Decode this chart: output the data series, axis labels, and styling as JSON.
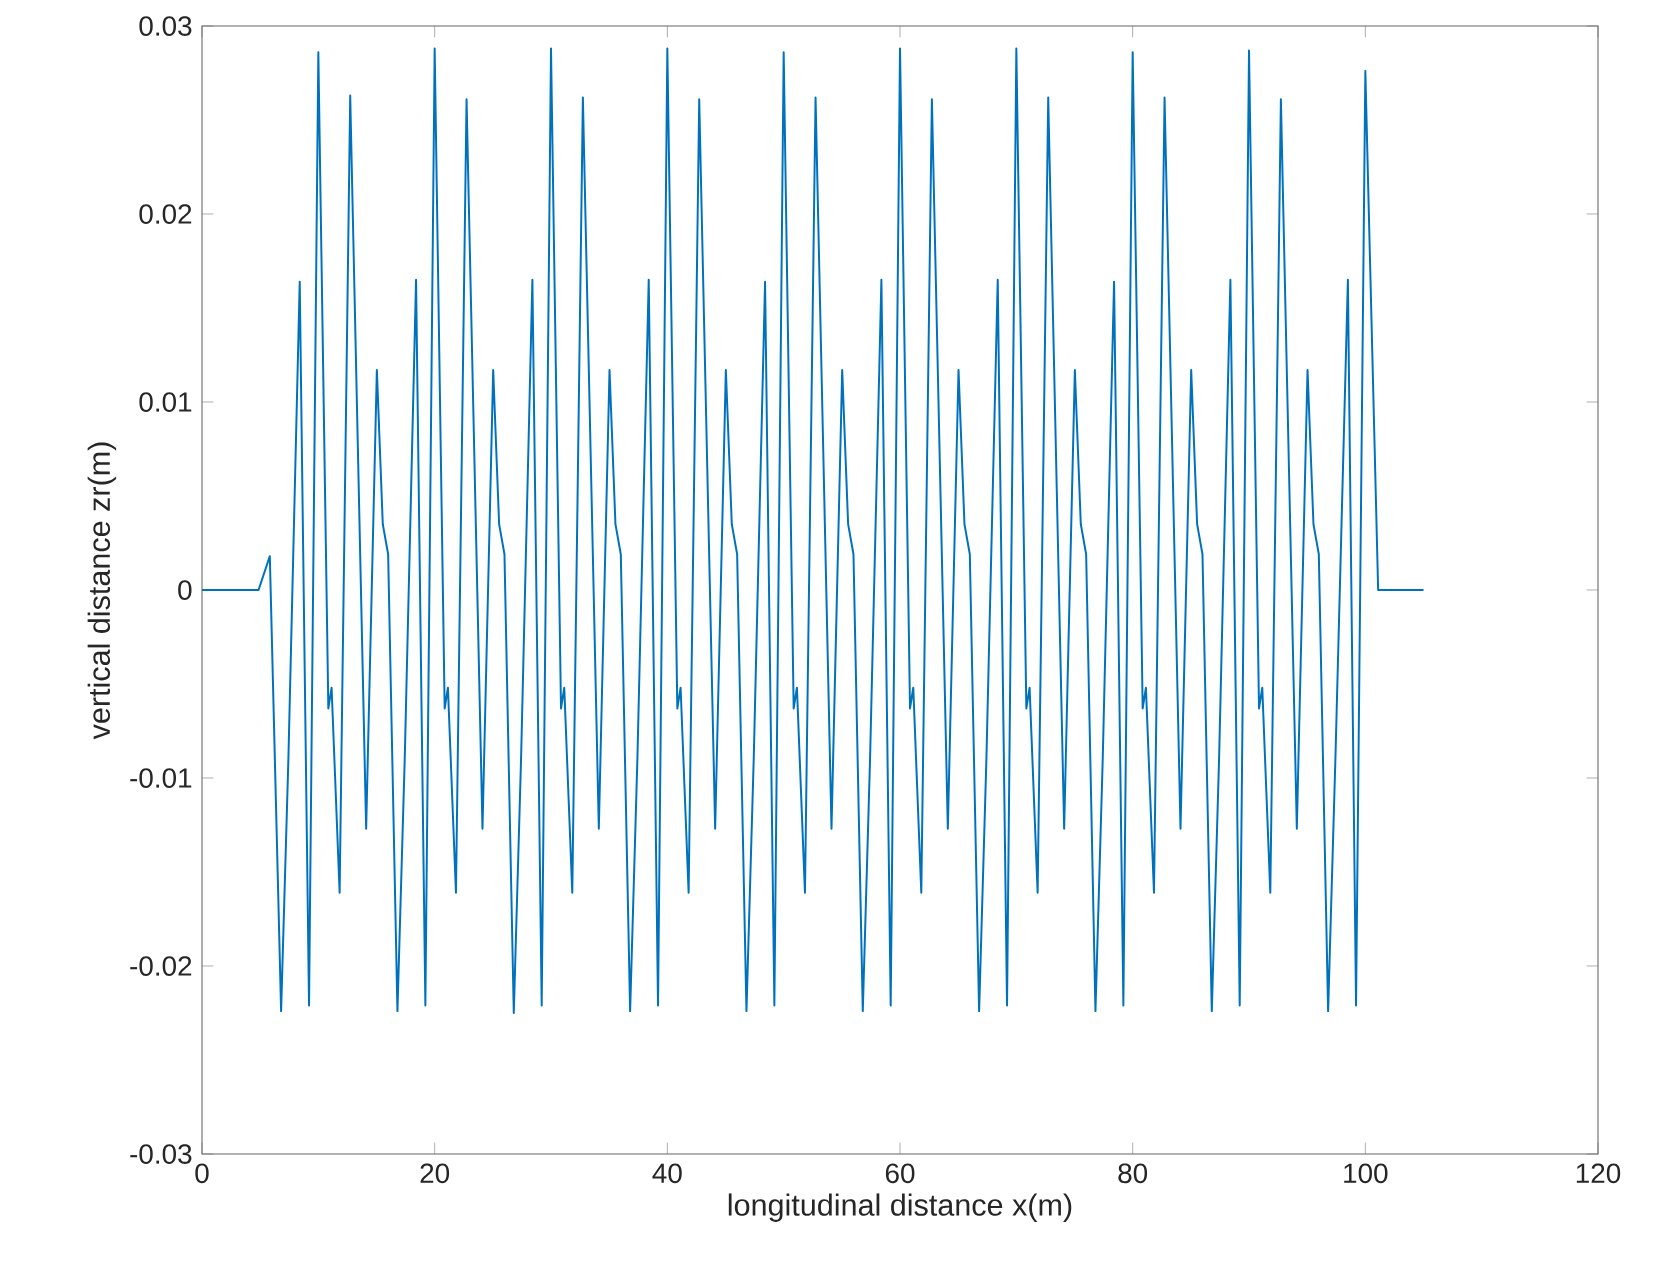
{
  "chart_data": {
    "type": "line",
    "xlabel": "longitudinal distance x(m)",
    "ylabel": "vertical distance zr(m)",
    "color": "#0072bd",
    "xlim": [
      0,
      120
    ],
    "ylim": [
      -0.03,
      0.03
    ],
    "xticks": [
      0,
      20,
      40,
      60,
      80,
      100,
      120
    ],
    "yticks": [
      -0.03,
      -0.02,
      -0.01,
      0,
      0.01,
      0.02,
      0.03
    ],
    "x": [
      0,
      4.86,
      5.83,
      6.8,
      7.43,
      8.4,
      9.2,
      10.0,
      10.86,
      11.14,
      11.83,
      12.74,
      14.11,
      15.03,
      15.54,
      16.0,
      16.8,
      17.43,
      18.4,
      19.2,
      20.0,
      20.86,
      21.14,
      21.83,
      22.74,
      24.11,
      25.03,
      25.54,
      26.0,
      26.8,
      27.43,
      28.4,
      29.2,
      30.0,
      30.86,
      31.14,
      31.83,
      32.74,
      34.11,
      35.03,
      35.54,
      36.0,
      36.8,
      37.43,
      38.4,
      39.2,
      40.0,
      40.86,
      41.14,
      41.83,
      42.74,
      44.11,
      45.03,
      45.54,
      46.0,
      46.8,
      47.43,
      48.4,
      49.2,
      50.0,
      50.86,
      51.14,
      51.83,
      52.74,
      54.11,
      55.03,
      55.54,
      56.0,
      56.8,
      57.43,
      58.4,
      59.2,
      60.0,
      60.86,
      61.14,
      61.83,
      62.74,
      64.11,
      65.03,
      65.54,
      66.0,
      66.8,
      67.43,
      68.4,
      69.2,
      70.0,
      70.86,
      71.14,
      71.83,
      72.74,
      74.11,
      75.03,
      75.54,
      76.0,
      76.8,
      77.43,
      78.4,
      79.2,
      80.0,
      80.86,
      81.14,
      81.83,
      82.74,
      84.11,
      85.03,
      85.54,
      86.0,
      86.8,
      87.43,
      88.4,
      89.2,
      90.0,
      90.86,
      91.14,
      91.83,
      92.74,
      94.11,
      95.03,
      95.54,
      96.0,
      96.8,
      97.43,
      98.5,
      99.2,
      100.0,
      101.1,
      105
    ],
    "values": [
      0,
      0,
      0.0018,
      -0.0224,
      -0.0089,
      0.0164,
      -0.0221,
      0.0286,
      -0.0063,
      -0.0052,
      -0.0161,
      0.0263,
      -0.0127,
      0.0117,
      0.0035,
      0.0019,
      -0.0224,
      -0.0089,
      0.0165,
      -0.0221,
      0.0288,
      -0.0063,
      -0.0052,
      -0.0161,
      0.0261,
      -0.0127,
      0.0117,
      0.0035,
      0.0019,
      -0.0225,
      -0.0089,
      0.0165,
      -0.0221,
      0.0288,
      -0.0063,
      -0.0052,
      -0.0161,
      0.0262,
      -0.0127,
      0.0117,
      0.0035,
      0.0019,
      -0.0224,
      -0.0089,
      0.0165,
      -0.0221,
      0.0288,
      -0.0063,
      -0.0052,
      -0.0161,
      0.0261,
      -0.0127,
      0.0117,
      0.0035,
      0.0019,
      -0.0224,
      -0.0089,
      0.0164,
      -0.0221,
      0.0286,
      -0.0063,
      -0.0052,
      -0.0161,
      0.0262,
      -0.0127,
      0.0117,
      0.0035,
      0.0019,
      -0.0224,
      -0.0089,
      0.0165,
      -0.0221,
      0.0288,
      -0.0063,
      -0.0052,
      -0.0161,
      0.0261,
      -0.0127,
      0.0117,
      0.0035,
      0.0019,
      -0.0224,
      -0.0089,
      0.0165,
      -0.0221,
      0.0288,
      -0.0063,
      -0.0052,
      -0.0161,
      0.0262,
      -0.0127,
      0.0117,
      0.0035,
      0.0019,
      -0.0224,
      -0.0089,
      0.0164,
      -0.0221,
      0.0286,
      -0.0063,
      -0.0052,
      -0.0161,
      0.0262,
      -0.0127,
      0.0117,
      0.0035,
      0.0019,
      -0.0224,
      -0.0089,
      0.0165,
      -0.0221,
      0.0287,
      -0.0063,
      -0.0052,
      -0.0161,
      0.0261,
      -0.0127,
      0.0117,
      0.0035,
      0.0019,
      -0.0224,
      -0.0089,
      0.0165,
      -0.0221,
      0.0276,
      0,
      0
    ]
  }
}
